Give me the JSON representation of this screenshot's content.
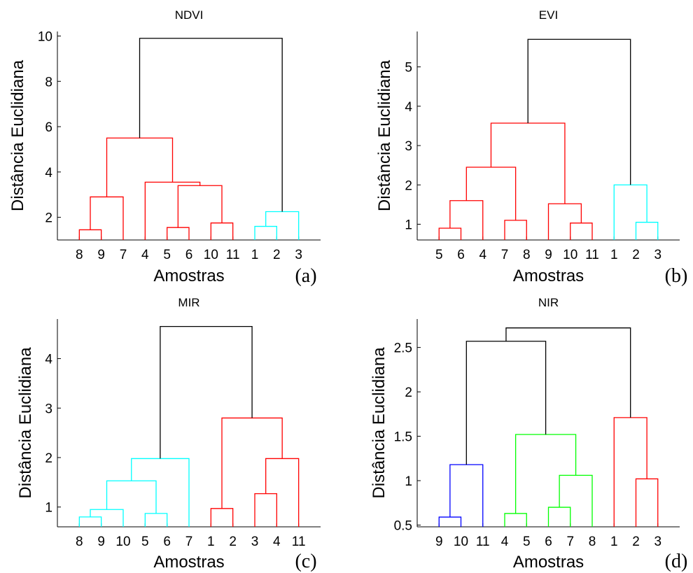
{
  "chart_data": [
    {
      "type": "dendrogram",
      "title": "NDVI",
      "xlabel": "Amostras",
      "ylabel": "Distância Euclidiana",
      "panel_label": "(a)",
      "leaf_order": [
        "8",
        "9",
        "7",
        "4",
        "5",
        "6",
        "10",
        "11",
        "1",
        "2",
        "3"
      ],
      "ylim": [
        1,
        10.2
      ],
      "yticks": [
        2,
        4,
        6,
        8,
        10
      ],
      "merges": [
        {
          "left": "leaf:0",
          "right": "leaf:1",
          "height": 1.45,
          "color": "#ff0000"
        },
        {
          "left": "merge:0",
          "right": "leaf:2",
          "height": 2.9,
          "color": "#ff0000"
        },
        {
          "left": "leaf:4",
          "right": "leaf:5",
          "height": 1.55,
          "color": "#ff0000"
        },
        {
          "left": "leaf:6",
          "right": "leaf:7",
          "height": 1.75,
          "color": "#ff0000"
        },
        {
          "left": "merge:2",
          "right": "merge:3",
          "height": 3.4,
          "color": "#ff0000"
        },
        {
          "left": "leaf:3",
          "right": "merge:4",
          "height": 3.55,
          "color": "#ff0000"
        },
        {
          "left": "merge:1",
          "right": "merge:5",
          "height": 5.5,
          "color": "#ff0000"
        },
        {
          "left": "leaf:8",
          "right": "leaf:9",
          "height": 1.6,
          "color": "#00ffff"
        },
        {
          "left": "merge:7",
          "right": "leaf:10",
          "height": 2.25,
          "color": "#00ffff"
        },
        {
          "left": "merge:6",
          "right": "merge:8",
          "height": 9.9,
          "color": "#000000"
        }
      ]
    },
    {
      "type": "dendrogram",
      "title": "EVI",
      "xlabel": "Amostras",
      "ylabel": "Distância Euclidiana",
      "panel_label": "(b)",
      "leaf_order": [
        "5",
        "6",
        "4",
        "7",
        "8",
        "9",
        "10",
        "11",
        "1",
        "2",
        "3"
      ],
      "ylim": [
        0.6,
        5.9
      ],
      "yticks": [
        1,
        2,
        3,
        4,
        5
      ],
      "merges": [
        {
          "left": "leaf:0",
          "right": "leaf:1",
          "height": 0.9,
          "color": "#ff0000"
        },
        {
          "left": "merge:0",
          "right": "leaf:2",
          "height": 1.6,
          "color": "#ff0000"
        },
        {
          "left": "leaf:3",
          "right": "leaf:4",
          "height": 1.1,
          "color": "#ff0000"
        },
        {
          "left": "merge:1",
          "right": "merge:2",
          "height": 2.45,
          "color": "#ff0000"
        },
        {
          "left": "leaf:6",
          "right": "leaf:7",
          "height": 1.03,
          "color": "#ff0000"
        },
        {
          "left": "leaf:5",
          "right": "merge:4",
          "height": 1.52,
          "color": "#ff0000"
        },
        {
          "left": "merge:3",
          "right": "merge:5",
          "height": 3.57,
          "color": "#ff0000"
        },
        {
          "left": "leaf:9",
          "right": "leaf:10",
          "height": 1.05,
          "color": "#00ffff"
        },
        {
          "left": "leaf:8",
          "right": "merge:7",
          "height": 2.0,
          "color": "#00ffff"
        },
        {
          "left": "merge:6",
          "right": "merge:8",
          "height": 5.7,
          "color": "#000000"
        }
      ]
    },
    {
      "type": "dendrogram",
      "title": "MIR",
      "xlabel": "Amostras",
      "ylabel": "Distância Euclidiana",
      "panel_label": "(c)",
      "leaf_order": [
        "8",
        "9",
        "10",
        "5",
        "6",
        "7",
        "1",
        "2",
        "3",
        "4",
        "11"
      ],
      "ylim": [
        0.6,
        4.8
      ],
      "yticks": [
        1,
        2,
        3,
        4
      ],
      "merges": [
        {
          "left": "leaf:0",
          "right": "leaf:1",
          "height": 0.8,
          "color": "#00ffff"
        },
        {
          "left": "merge:0",
          "right": "leaf:2",
          "height": 0.95,
          "color": "#00ffff"
        },
        {
          "left": "leaf:3",
          "right": "leaf:4",
          "height": 0.87,
          "color": "#00ffff"
        },
        {
          "left": "merge:1",
          "right": "merge:2",
          "height": 1.53,
          "color": "#00ffff"
        },
        {
          "left": "merge:3",
          "right": "leaf:5",
          "height": 1.98,
          "color": "#00ffff"
        },
        {
          "left": "leaf:6",
          "right": "leaf:7",
          "height": 0.97,
          "color": "#ff0000"
        },
        {
          "left": "leaf:8",
          "right": "leaf:9",
          "height": 1.27,
          "color": "#ff0000"
        },
        {
          "left": "merge:6",
          "right": "leaf:10",
          "height": 1.98,
          "color": "#ff0000"
        },
        {
          "left": "merge:5",
          "right": "merge:7",
          "height": 2.8,
          "color": "#ff0000"
        },
        {
          "left": "merge:4",
          "right": "merge:8",
          "height": 4.65,
          "color": "#000000"
        }
      ]
    },
    {
      "type": "dendrogram",
      "title": "NIR",
      "xlabel": "Amostras",
      "ylabel": "Distância Euclidiana",
      "panel_label": "(d)",
      "leaf_order": [
        "9",
        "10",
        "11",
        "4",
        "5",
        "6",
        "7",
        "8",
        "1",
        "2",
        "3"
      ],
      "ylim": [
        0.48,
        2.82
      ],
      "yticks": [
        0.5,
        1,
        1.5,
        2,
        2.5
      ],
      "merges": [
        {
          "left": "leaf:0",
          "right": "leaf:1",
          "height": 0.59,
          "color": "#0000ff"
        },
        {
          "left": "merge:0",
          "right": "leaf:2",
          "height": 1.18,
          "color": "#0000ff"
        },
        {
          "left": "leaf:3",
          "right": "leaf:4",
          "height": 0.63,
          "color": "#00ff00"
        },
        {
          "left": "leaf:5",
          "right": "leaf:6",
          "height": 0.7,
          "color": "#00ff00"
        },
        {
          "left": "merge:3",
          "right": "leaf:7",
          "height": 1.06,
          "color": "#00ff00"
        },
        {
          "left": "merge:2",
          "right": "merge:4",
          "height": 1.52,
          "color": "#00ff00"
        },
        {
          "left": "merge:1",
          "right": "merge:5",
          "height": 2.57,
          "color": "#000000"
        },
        {
          "left": "leaf:9",
          "right": "leaf:10",
          "height": 1.02,
          "color": "#ff0000"
        },
        {
          "left": "leaf:8",
          "right": "merge:7",
          "height": 1.71,
          "color": "#ff0000"
        },
        {
          "left": "merge:6",
          "right": "merge:8",
          "height": 2.72,
          "color": "#000000"
        }
      ]
    }
  ]
}
